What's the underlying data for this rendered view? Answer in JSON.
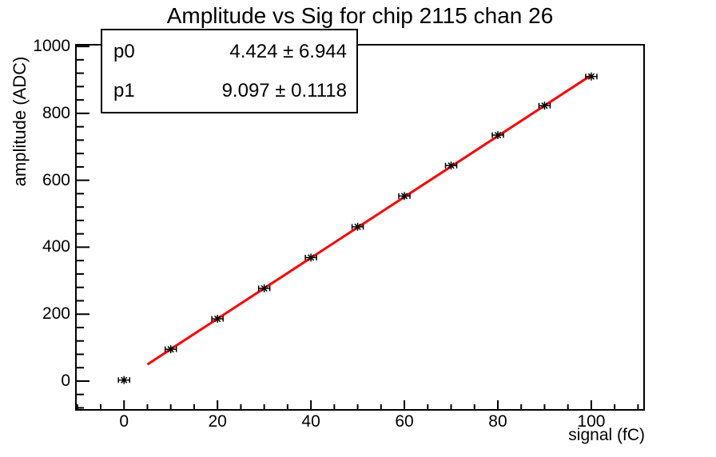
{
  "title": "Amplitude vs Sig for chip 2115 chan 26",
  "stats": {
    "rows": [
      {
        "param": "p0",
        "value": "4.424 ± 6.944"
      },
      {
        "param": "p1",
        "value": "9.097 ± 0.1118"
      }
    ]
  },
  "chart_data": {
    "type": "scatter",
    "title": "Amplitude vs Sig for chip 2115 chan 26",
    "xlabel": "signal (fC)",
    "ylabel": "amplitude (ADC)",
    "x": [
      0,
      10,
      20,
      30,
      40,
      50,
      60,
      70,
      80,
      90,
      100
    ],
    "y": [
      3,
      95,
      186,
      277,
      369,
      461,
      553,
      644,
      735,
      823,
      910
    ],
    "x_error": 1.2,
    "marker": "asterisk",
    "marker_color": "#000000",
    "fit": {
      "type": "linear",
      "label_p0": "p0",
      "label_p1": "p1",
      "p0": 4.424,
      "p0_err": 6.944,
      "p1": 9.097,
      "p1_err": 0.1118,
      "range": [
        5,
        100
      ],
      "color": "#ff0000"
    },
    "xlim": [
      -10.3,
      111.3
    ],
    "ylim": [
      -86,
      1005
    ],
    "x_major_ticks": [
      0,
      20,
      40,
      60,
      80,
      100
    ],
    "x_minor_step": 5,
    "y_major_ticks": [
      0,
      200,
      400,
      600,
      800,
      1000
    ],
    "y_minor_step": 40,
    "grid": false,
    "legend_position": "stats-box-top-left"
  },
  "colors": {
    "background": "#ffffff",
    "axis": "#000000",
    "fit_line": "#ff0000",
    "marker": "#000000"
  }
}
